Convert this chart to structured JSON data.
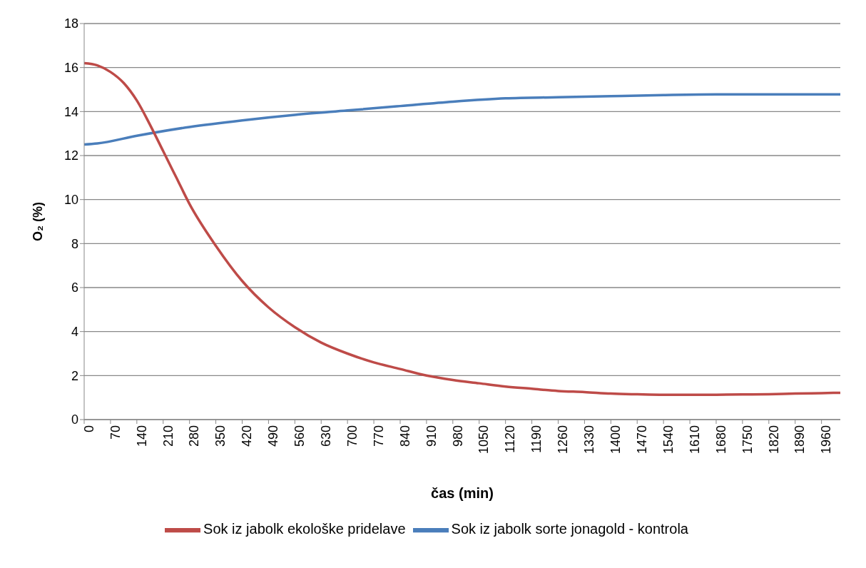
{
  "chart_data": {
    "type": "line",
    "xlabel": "čas (min)",
    "ylabel": "O₂ (%)",
    "xlim": [
      0,
      2010
    ],
    "xticks": [
      0,
      70,
      140,
      210,
      280,
      350,
      420,
      490,
      560,
      630,
      700,
      770,
      840,
      910,
      980,
      1050,
      1120,
      1190,
      1260,
      1330,
      1400,
      1470,
      1540,
      1610,
      1680,
      1750,
      1820,
      1890,
      1960
    ],
    "ylim": [
      0,
      18
    ],
    "yticks": [
      0,
      2,
      4,
      6,
      8,
      10,
      12,
      14,
      16,
      18
    ],
    "grid": "y",
    "legend": "bottom",
    "marker": "none",
    "line_style": "solid",
    "series": [
      {
        "name": "Sok iz jabolk sorte jonagold - kontrola",
        "color": "#4a7ebb",
        "x": [
          0,
          35,
          140,
          280,
          420,
          560,
          700,
          840,
          980,
          1120,
          1260,
          1400,
          1540,
          1680,
          1820,
          2010
        ],
        "values": [
          12.5,
          12.55,
          12.9,
          13.3,
          13.6,
          13.85,
          14.05,
          14.25,
          14.45,
          14.6,
          14.65,
          14.7,
          14.75,
          14.78,
          14.78,
          14.78
        ]
      },
      {
        "name": "Sok iz jabolk ekološke pridelave",
        "color": "#be4b48",
        "x": [
          0,
          35,
          70,
          105,
          140,
          175,
          210,
          245,
          280,
          350,
          420,
          490,
          560,
          630,
          700,
          770,
          840,
          910,
          980,
          1050,
          1120,
          1190,
          1260,
          1330,
          1400,
          1470,
          1540,
          1610,
          1680,
          1750,
          1820,
          1890,
          1960,
          2010
        ],
        "values": [
          16.2,
          16.1,
          15.8,
          15.3,
          14.5,
          13.4,
          12.2,
          11,
          9.8,
          7.9,
          6.3,
          5.1,
          4.2,
          3.5,
          3.0,
          2.6,
          2.3,
          2.0,
          1.8,
          1.65,
          1.5,
          1.4,
          1.3,
          1.25,
          1.18,
          1.15,
          1.13,
          1.13,
          1.13,
          1.14,
          1.15,
          1.18,
          1.2,
          1.22
        ]
      }
    ]
  }
}
